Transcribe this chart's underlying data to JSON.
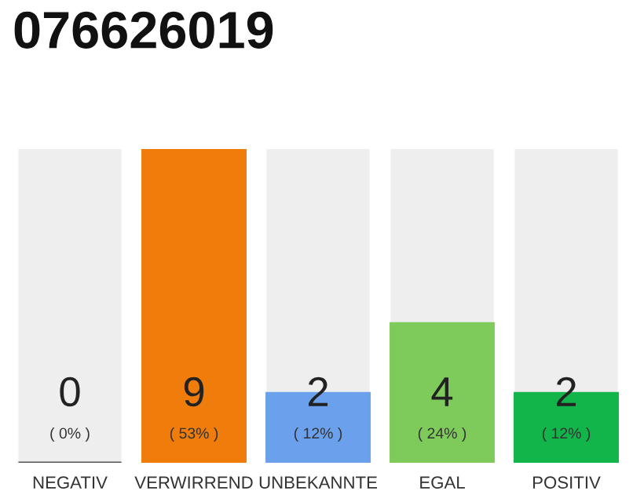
{
  "chart_data": {
    "type": "bar",
    "title": "076626019",
    "categories": [
      "NEGATIV",
      "VERWIRREND",
      "UNBEKANNTE",
      "EGAL",
      "POSITIV"
    ],
    "values": [
      0,
      9,
      2,
      4,
      2
    ],
    "colors": [
      "#555555",
      "#f07c0c",
      "#6aa0ec",
      "#7ecb5c",
      "#12b54a"
    ],
    "value_labels": [
      "0\n( 0% )",
      "9\n( 53% )",
      "2\n( 12% )",
      "4\n( 24% )",
      "2\n( 12% )"
    ],
    "tick_labels": "x",
    "grid": false,
    "legend": false
  }
}
